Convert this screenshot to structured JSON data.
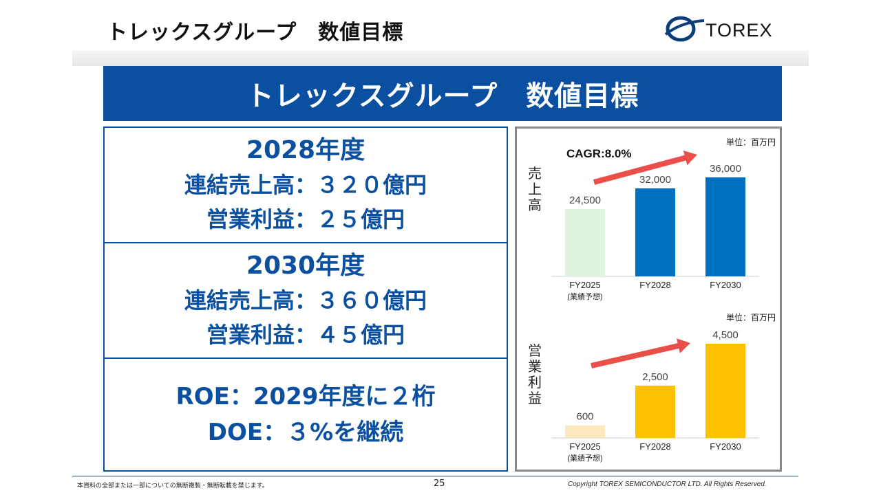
{
  "header": {
    "title": "トレックスグループ　数値目標",
    "logo_text": "TOREX"
  },
  "banner": {
    "title": "トレックスグループ　数値目標"
  },
  "targets": [
    {
      "heading": "2028年度",
      "lines": [
        "連結売上高：３２０億円",
        "営業利益：２５億円"
      ]
    },
    {
      "heading": "2030年度",
      "lines": [
        "連結売上高：３６０億円",
        "営業利益：４５億円"
      ]
    },
    {
      "heading": "",
      "lines": [
        "ROE：2029年度に２桁",
        "DOE：３%を継続"
      ]
    }
  ],
  "colors": {
    "brand": "#0a4fa0",
    "sales_bar": "#0070c0",
    "sales_forecast_bar": "#dff3df",
    "profit_bar": "#ffc000",
    "profit_forecast_bar": "#fde9c0",
    "arrow": "#e8302a"
  },
  "chart_data": [
    {
      "type": "bar",
      "ylabel": "売上高",
      "unit_label": "単位：百万円",
      "annotation": "CAGR:8.0%",
      "categories": [
        "FY2025",
        "FY2028",
        "FY2030"
      ],
      "category_notes": [
        "(業績予想)",
        "",
        ""
      ],
      "values": [
        24500,
        32000,
        36000
      ],
      "value_labels": [
        "24,500",
        "32,000",
        "36,000"
      ],
      "ylim": [
        0,
        36000
      ],
      "grid": false
    },
    {
      "type": "bar",
      "ylabel": "営業利益",
      "unit_label": "単位：百万円",
      "annotation": "",
      "categories": [
        "FY2025",
        "FY2028",
        "FY2030"
      ],
      "category_notes": [
        "(業績予想)",
        "",
        ""
      ],
      "values": [
        600,
        2500,
        4500
      ],
      "value_labels": [
        "600",
        "2,500",
        "4,500"
      ],
      "ylim": [
        0,
        4500
      ],
      "grid": false
    }
  ],
  "footer": {
    "notice": "本資料の全部または一部についての無断複製・無断転載を禁じます。",
    "page": "25",
    "copyright": "Copyright TOREX SEMICONDUCTOR LTD.  All Rights Reserved."
  }
}
